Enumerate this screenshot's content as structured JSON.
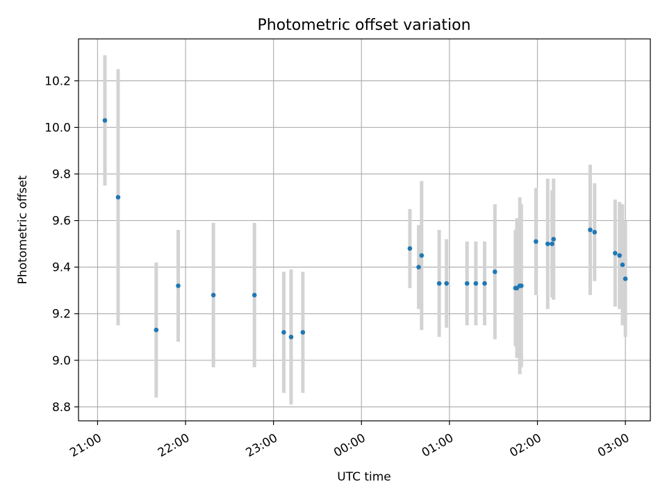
{
  "chart_data": {
    "type": "scatter",
    "title": "Photometric offset variation",
    "xlabel": "UTC time",
    "ylabel": "Photometric offset",
    "x_tick_labels": [
      "21:00",
      "22:00",
      "23:00",
      "00:00",
      "01:00",
      "02:00",
      "03:00"
    ],
    "y_tick_labels": [
      "8.8",
      "9.0",
      "9.2",
      "9.4",
      "9.6",
      "9.8",
      "10.0",
      "10.2"
    ],
    "x_ticks": [
      "21:00",
      "22:00",
      "23:00",
      "00:00",
      "01:00",
      "02:00",
      "03:00"
    ],
    "y_ticks": [
      8.8,
      9.0,
      9.2,
      9.4,
      9.6,
      9.8,
      10.0,
      10.2
    ],
    "xlim": [
      "20:47",
      "03:17"
    ],
    "ylim": [
      8.74,
      10.38
    ],
    "grid": true,
    "marker_color": "#1f77b4",
    "errorbar_color": "#d3d3d3",
    "points": [
      {
        "t": "21:05",
        "y": 10.03,
        "err": 0.28
      },
      {
        "t": "21:14",
        "y": 9.7,
        "err": 0.55
      },
      {
        "t": "21:40",
        "y": 9.13,
        "err": 0.29
      },
      {
        "t": "21:55",
        "y": 9.32,
        "err": 0.24
      },
      {
        "t": "22:19",
        "y": 9.28,
        "err": 0.31
      },
      {
        "t": "22:47",
        "y": 9.28,
        "err": 0.31
      },
      {
        "t": "23:07",
        "y": 9.12,
        "err": 0.26
      },
      {
        "t": "23:12",
        "y": 9.1,
        "err": 0.29
      },
      {
        "t": "23:20",
        "y": 9.12,
        "err": 0.26
      },
      {
        "t": "00:33",
        "y": 9.48,
        "err": 0.17
      },
      {
        "t": "00:39",
        "y": 9.4,
        "err": 0.18
      },
      {
        "t": "00:41",
        "y": 9.45,
        "err": 0.32
      },
      {
        "t": "00:53",
        "y": 9.33,
        "err": 0.23
      },
      {
        "t": "00:58",
        "y": 9.33,
        "err": 0.19
      },
      {
        "t": "01:12",
        "y": 9.33,
        "err": 0.18
      },
      {
        "t": "01:18",
        "y": 9.33,
        "err": 0.18
      },
      {
        "t": "01:24",
        "y": 9.33,
        "err": 0.18
      },
      {
        "t": "01:31",
        "y": 9.38,
        "err": 0.29
      },
      {
        "t": "01:45",
        "y": 9.31,
        "err": 0.25
      },
      {
        "t": "01:46",
        "y": 9.31,
        "err": 0.3
      },
      {
        "t": "01:48",
        "y": 9.32,
        "err": 0.38
      },
      {
        "t": "01:49",
        "y": 9.32,
        "err": 0.35
      },
      {
        "t": "01:59",
        "y": 9.51,
        "err": 0.23
      },
      {
        "t": "02:07",
        "y": 9.5,
        "err": 0.28
      },
      {
        "t": "02:10",
        "y": 9.5,
        "err": 0.23
      },
      {
        "t": "02:11",
        "y": 9.52,
        "err": 0.26
      },
      {
        "t": "02:36",
        "y": 9.56,
        "err": 0.28
      },
      {
        "t": "02:39",
        "y": 9.55,
        "err": 0.21
      },
      {
        "t": "02:53",
        "y": 9.46,
        "err": 0.23
      },
      {
        "t": "02:56",
        "y": 9.45,
        "err": 0.23
      },
      {
        "t": "02:58",
        "y": 9.41,
        "err": 0.26
      },
      {
        "t": "03:00",
        "y": 9.35,
        "err": 0.25
      }
    ]
  }
}
